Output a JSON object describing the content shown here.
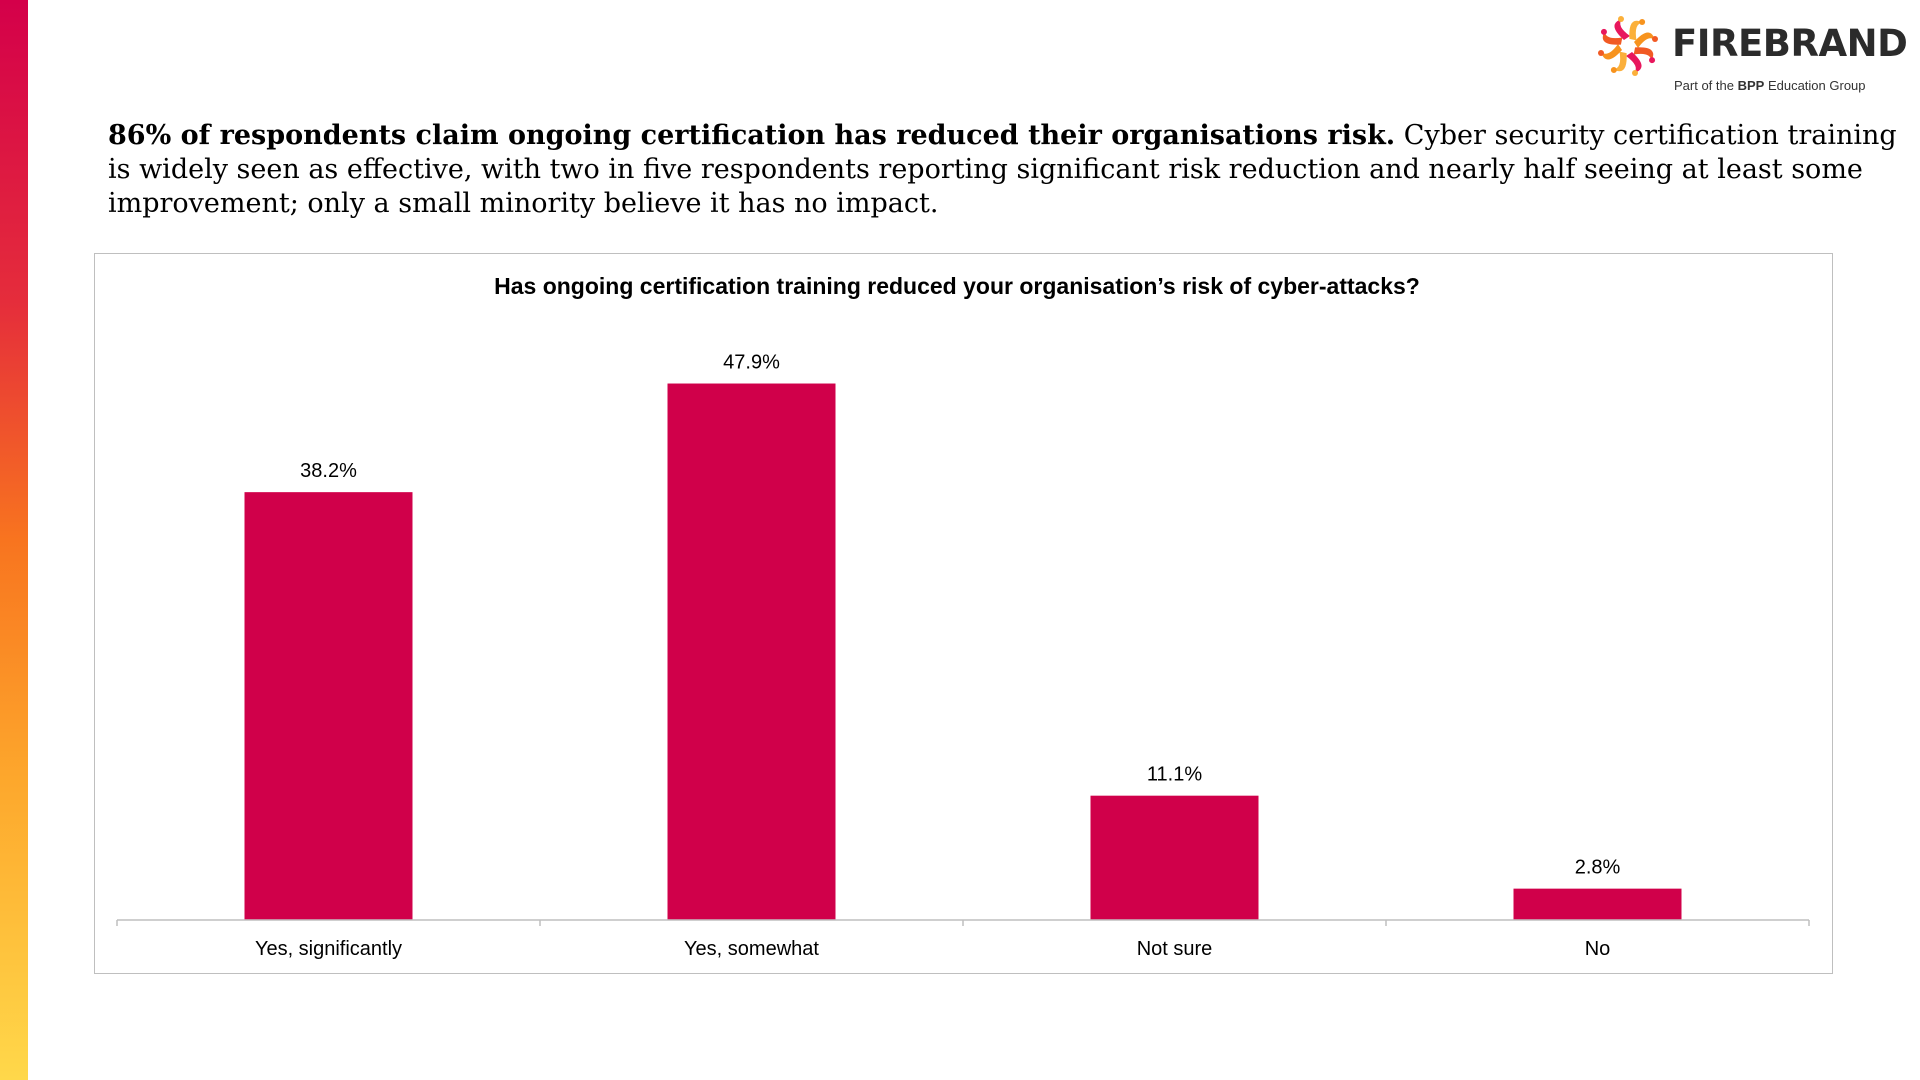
{
  "brand": {
    "name": "FIREBRAND",
    "tagline_prefix": "Part of the ",
    "tagline_brand": "BPP",
    "tagline_suffix": " Education Group",
    "accent_color": "#d4004a",
    "mark_colors": [
      "#f7931e",
      "#f15a24",
      "#e8175d",
      "#fbb03b"
    ]
  },
  "headline": {
    "lead": "86% of respondents claim ongoing certification has reduced their organisations risk.",
    "body": "Cyber security certification training is widely seen as effective, with two in five respondents reporting significant risk reduction and nearly half seeing at least some improvement; only a small minority believe it has no impact."
  },
  "chart_data": {
    "type": "bar",
    "title": "Has ongoing certification training reduced your organisation’s risk of cyber-attacks?",
    "categories": [
      "Yes, significantly",
      "Yes, somewhat",
      "Not sure",
      "No"
    ],
    "values": [
      38.2,
      47.9,
      11.1,
      2.8
    ],
    "value_labels": [
      "38.2%",
      "47.9%",
      "11.1%",
      "2.8%"
    ],
    "unit": "%",
    "ylim": [
      0,
      50
    ],
    "bar_color": "#d0004a",
    "xlabel": "",
    "ylabel": "",
    "grid": false,
    "legend": "none"
  }
}
